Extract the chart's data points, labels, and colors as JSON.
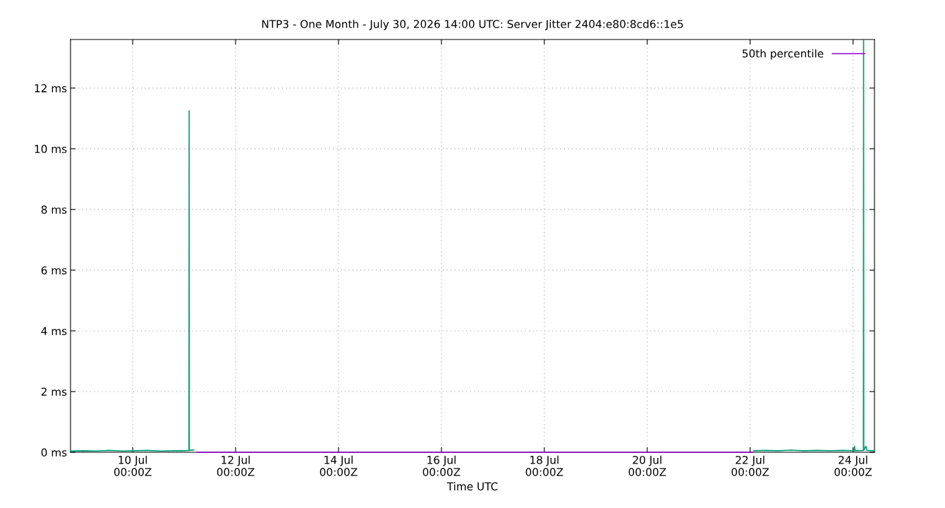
{
  "chart_data": {
    "type": "line",
    "title": "NTP3 - One Month - July 30, 2026 14:00 UTC: Server Jitter 2404:e80:8cd6::1e5",
    "xlabel": "Time UTC",
    "xlim": [
      "2026-07-08T19:00",
      "2026-07-24T10:00"
    ],
    "xticks": [
      {
        "value": "2026-07-10T00:00",
        "label": "10 Jul\n00:00Z"
      },
      {
        "value": "2026-07-12T00:00",
        "label": "12 Jul\n00:00Z"
      },
      {
        "value": "2026-07-14T00:00",
        "label": "14 Jul\n00:00Z"
      },
      {
        "value": "2026-07-16T00:00",
        "label": "16 Jul\n00:00Z"
      },
      {
        "value": "2026-07-18T00:00",
        "label": "18 Jul\n00:00Z"
      },
      {
        "value": "2026-07-20T00:00",
        "label": "20 Jul\n00:00Z"
      },
      {
        "value": "2026-07-22T00:00",
        "label": "22 Jul\n00:00Z"
      },
      {
        "value": "2026-07-24T00:00",
        "label": "24 Jul\n00:00Z"
      }
    ],
    "ylim": [
      0,
      13.6
    ],
    "yticks": [
      {
        "value": 0,
        "label": "0 ms"
      },
      {
        "value": 2,
        "label": "2 ms"
      },
      {
        "value": 4,
        "label": "4 ms"
      },
      {
        "value": 6,
        "label": "6 ms"
      },
      {
        "value": 8,
        "label": "8 ms"
      },
      {
        "value": 10,
        "label": "10 ms"
      },
      {
        "value": 12,
        "label": "12 ms"
      }
    ],
    "grid": true,
    "legend": "top right",
    "marker": "none",
    "line_style": "solid",
    "series": [
      {
        "name": "50th percentile",
        "color": "#9400d3",
        "x": [
          "2026-07-11T06:00",
          "2026-07-22T01:00"
        ],
        "values": [
          0,
          0
        ]
      },
      {
        "color": "#009e73",
        "x": [
          "2026-07-08T19:00",
          "2026-07-09T01:00",
          "2026-07-09T07:00",
          "2026-07-09T13:00",
          "2026-07-09T19:00",
          "2026-07-10T01:00",
          "2026-07-10T07:00",
          "2026-07-10T13:00",
          "2026-07-10T19:00",
          "2026-07-11T00:00",
          "2026-07-11T02:15",
          "2026-07-11T02:20",
          "2026-07-11T02:25",
          "2026-07-11T04:30",
          "2026-07-11T05:00",
          "2026-07-22T01:40",
          "2026-07-22T07:00",
          "2026-07-22T13:00",
          "2026-07-22T19:00",
          "2026-07-23T01:00",
          "2026-07-23T07:00",
          "2026-07-23T13:00",
          "2026-07-23T19:00",
          "2026-07-24T00:30",
          "2026-07-24T00:40",
          "2026-07-24T01:00",
          "2026-07-24T04:50",
          "2026-07-24T04:55",
          "2026-07-24T05:00",
          "2026-07-24T06:00",
          "2026-07-24T06:30",
          "2026-07-24T10:00"
        ],
        "values": [
          0.04,
          0.05,
          0.04,
          0.06,
          0.04,
          0.05,
          0.06,
          0.04,
          0.05,
          0.05,
          0.06,
          11.25,
          0.06,
          0.08,
          null,
          0.05,
          0.06,
          0.05,
          0.07,
          0.05,
          0.06,
          0.05,
          0.06,
          0.05,
          0.2,
          0.05,
          0.06,
          13.6,
          0.06,
          0.2,
          0.06,
          0.05
        ]
      }
    ]
  }
}
